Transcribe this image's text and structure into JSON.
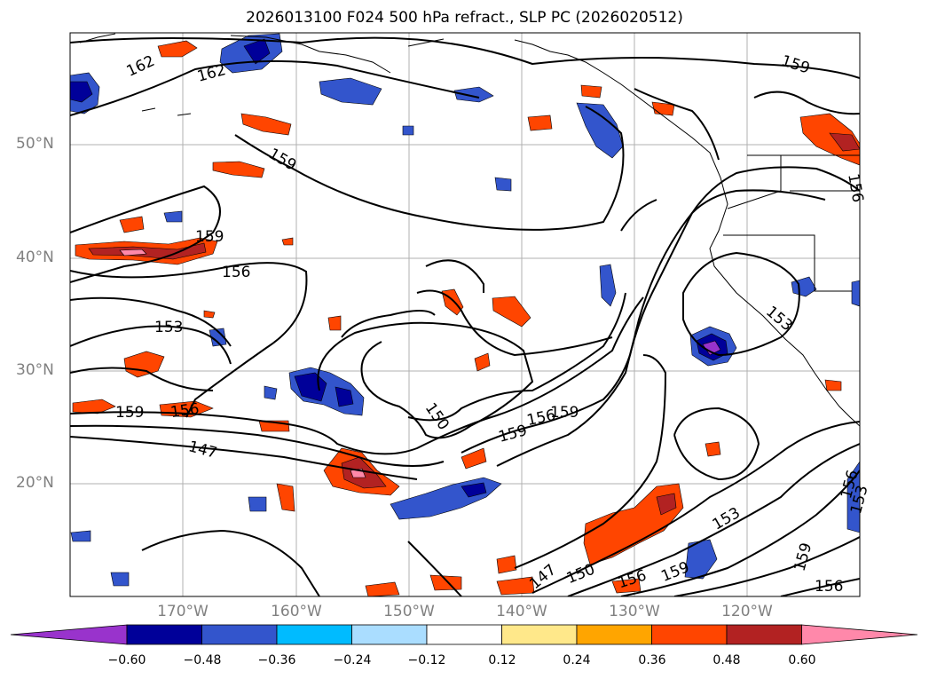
{
  "title": "2026013100 F024 500 hPa refract., SLP PC (2026020512)",
  "latitude_labels": [
    "50°N",
    "40°N",
    "30°N",
    "20°N"
  ],
  "longitude_labels": [
    "170°W",
    "160°W",
    "150°W",
    "140°W",
    "130°W",
    "120°W"
  ],
  "colorbar": {
    "tick_labels": [
      "−0.60",
      "−0.48",
      "−0.36",
      "−0.24",
      "−0.12",
      "0.12",
      "0.24",
      "0.36",
      "0.48",
      "0.60"
    ],
    "colors": [
      "#9933cc",
      "#000099",
      "#3355cc",
      "#00bbff",
      "#aaddff",
      "#ffffff",
      "#ffe88a",
      "#ffa500",
      "#ff4500",
      "#b22222",
      "#ff88aa"
    ]
  },
  "contour_labels": [
    "162",
    "162",
    "159",
    "159",
    "159",
    "156",
    "153",
    "159",
    "156",
    "156",
    "150",
    "156",
    "159",
    "147",
    "147",
    "150",
    "156",
    "159",
    "153",
    "153",
    "159",
    "156",
    "153",
    "156",
    "159"
  ],
  "colors": {
    "contour": "#000000",
    "grid": "#b0b0b0",
    "coast": "#000000",
    "tick_text": "#808080"
  }
}
